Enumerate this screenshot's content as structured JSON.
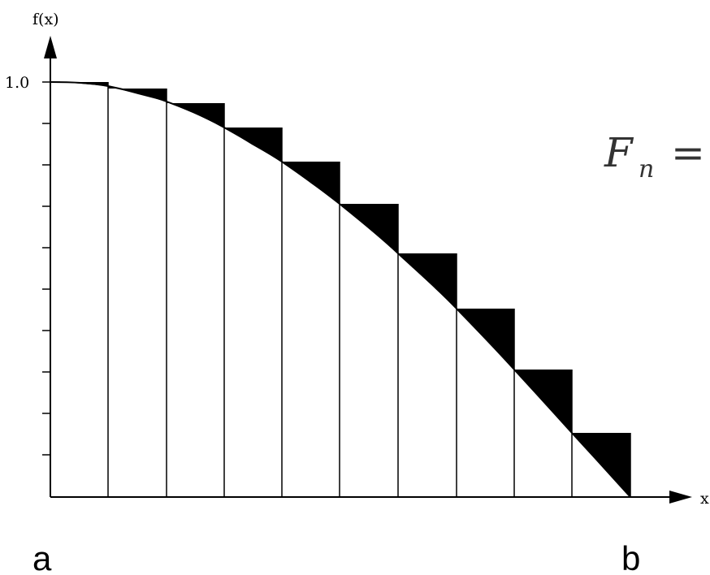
{
  "diagram": {
    "y_axis_label": "f(x)",
    "x_axis_label": "x",
    "y_tick_label": "1.0",
    "left_endpoint_label": "a",
    "right_endpoint_label": "b",
    "formula": {
      "symbol": "F",
      "subscript": "n",
      "operator": "="
    },
    "subintervals": 10
  }
}
